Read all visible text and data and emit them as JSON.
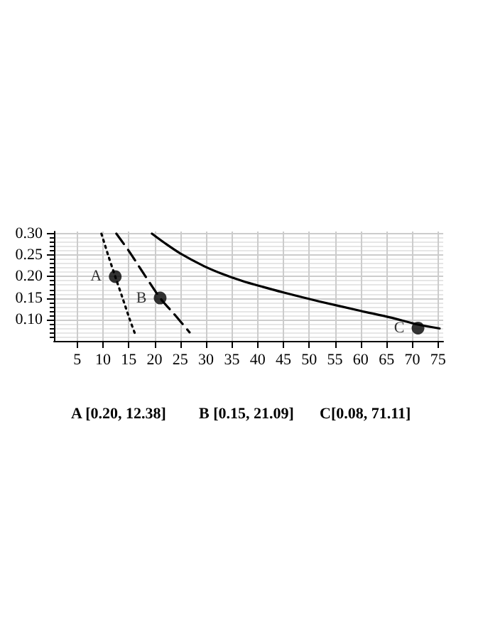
{
  "chart_data": {
    "type": "line",
    "xlim": [
      0.5,
      76
    ],
    "ylim": [
      0.05,
      0.305
    ],
    "xticks": [
      5,
      10,
      15,
      20,
      25,
      30,
      35,
      40,
      45,
      50,
      55,
      60,
      65,
      70,
      75
    ],
    "yticks": [
      {
        "value": 0.1,
        "label": "0.10"
      },
      {
        "value": 0.15,
        "label": "0.15"
      },
      {
        "value": 0.2,
        "label": "0.20"
      },
      {
        "value": 0.25,
        "label": "0.25"
      },
      {
        "value": 0.3,
        "label": "0.30"
      }
    ],
    "grid": true,
    "series": [
      {
        "color": "#000000",
        "line_style": "dotted",
        "marker": "none",
        "x": [
          9.7,
          11,
          12.38,
          13.8,
          15.2,
          16.3
        ],
        "values": [
          0.3,
          0.25,
          0.2,
          0.15,
          0.1,
          0.064
        ]
      },
      {
        "color": "#000000",
        "line_style": "dashed",
        "marker": "none",
        "x": [
          12.6,
          15,
          18,
          21.09,
          24,
          26.8
        ],
        "values": [
          0.3,
          0.26,
          0.205,
          0.15,
          0.11,
          0.07
        ]
      },
      {
        "color": "#000000",
        "line_style": "solid",
        "marker": "none",
        "x": [
          19.5,
          22,
          25,
          29.5,
          33,
          37,
          41,
          45,
          52,
          60,
          66,
          71.11,
          75.3
        ],
        "values": [
          0.3,
          0.278,
          0.254,
          0.225,
          0.207,
          0.19,
          0.176,
          0.163,
          0.142,
          0.12,
          0.104,
          0.088,
          0.079
        ]
      },
      {
        "type": "scatter",
        "color": "#000000",
        "marker": "circle",
        "x": [
          12.38,
          21.09,
          71.11
        ],
        "values": [
          0.2,
          0.15,
          0.08
        ],
        "value_labels": [
          "A",
          "B",
          "C"
        ]
      }
    ],
    "annotations": [
      "A [0.20, 12.38]",
      "B [0.15, 21.09]",
      "C[0.08, 71.11]"
    ]
  }
}
